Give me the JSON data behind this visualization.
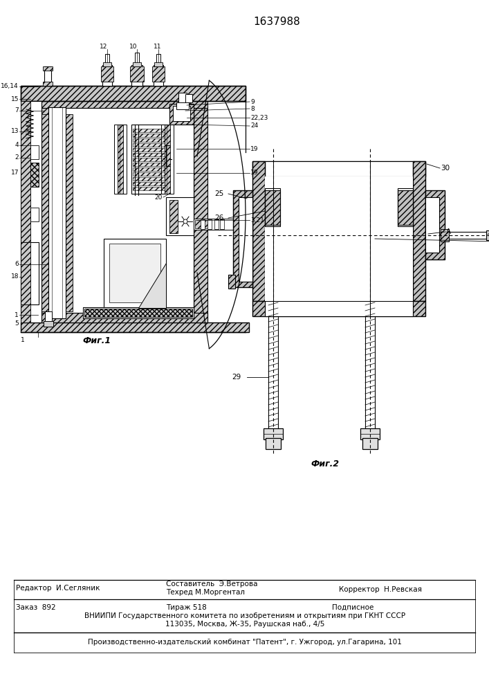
{
  "patent_number": "1637988",
  "fig1_caption": "Фиг.1",
  "fig2_caption": "Фиг.2",
  "editor_line": "Редактор  И.Сегляник",
  "composer_line": "Составитель  Э.Ветрова",
  "techred_line": "Техред М.Моргентал",
  "corrector_line": "Корректор  Н.Ревская",
  "order_line": "Заказ  892",
  "tirazh_line": "Тираж 518",
  "podpisnoe_line": "Подписное",
  "vniiipi_line": "ВНИИПИ Государственного комитета по изобретениям и открытиям при ГКНТ СССР",
  "address_line": "113035, Москва, Ж-35, Раушская наб., 4/5",
  "publisher_line": "Производственно-издательский комбинат \"Патент\", г. Ужгород, ул.Гагарина, 101",
  "bg_color": "#ffffff"
}
